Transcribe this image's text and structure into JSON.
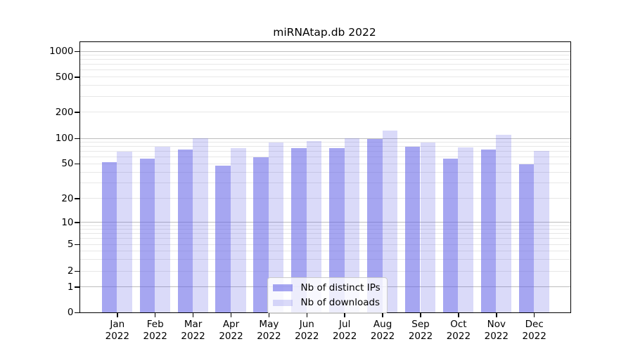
{
  "figure": {
    "background": "#ffffff"
  },
  "chart_data": {
    "type": "bar",
    "title": "miRNAtap.db 2022",
    "categories": [
      "Jan",
      "Feb",
      "Mar",
      "Apr",
      "May",
      "Jun",
      "Jul",
      "Aug",
      "Sep",
      "Oct",
      "Nov",
      "Dec"
    ],
    "category_year": "2022",
    "series": [
      {
        "name": "Nb of distinct IPs",
        "color": "rgba(99,99,231,0.57)",
        "values": [
          52,
          57,
          73,
          47,
          60,
          76,
          76,
          98,
          80,
          57,
          74,
          49
        ]
      },
      {
        "name": "Nb of downloads",
        "color": "rgba(99,99,231,0.24)",
        "values": [
          70,
          80,
          100,
          77,
          89,
          92,
          100,
          123,
          89,
          78,
          110,
          71
        ]
      }
    ],
    "yscale": "symlog",
    "yticks": [
      0,
      1,
      2,
      5,
      10,
      20,
      50,
      100,
      200,
      500,
      1000
    ],
    "ytick_labels": [
      "0",
      "1",
      "2",
      "5",
      "10",
      "20",
      "50",
      "100",
      "200",
      "500",
      "1000"
    ],
    "ylim": [
      0,
      1200
    ],
    "grid": "on",
    "legend_position": "lower center",
    "colors": {
      "axis": "#000000",
      "text": "#000000",
      "major_grid": "#bdbdbd",
      "minor_grid": "#e7e7e7"
    }
  }
}
